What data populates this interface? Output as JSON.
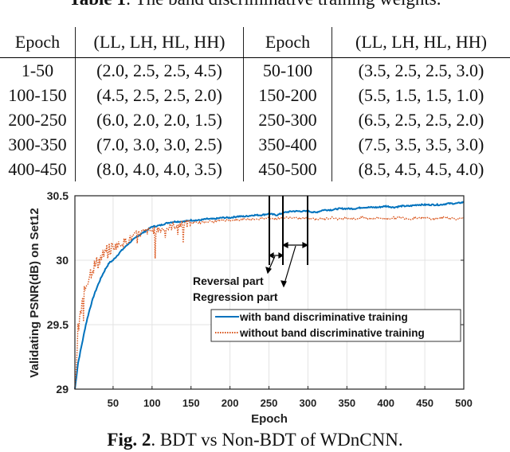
{
  "table": {
    "caption_label": "Table 1",
    "caption_text": ": The band discriminative training weights.",
    "headers": [
      "Epoch",
      "(LL, LH, HL, HH)",
      "Epoch",
      "(LL, LH, HL, HH)"
    ],
    "rows": [
      [
        "1-50",
        "(2.0, 2.5, 2.5, 4.5)",
        "50-100",
        "(3.5, 2.5, 2.5, 3.0)"
      ],
      [
        "100-150",
        "(4.5, 2.5, 2.5, 2.0)",
        "150-200",
        "(5.5, 1.5, 1.5, 1.0)"
      ],
      [
        "200-250",
        "(6.0, 2.0, 2.0, 1.5)",
        "250-300",
        "(6.5, 2.5, 2.5, 2.0)"
      ],
      [
        "300-350",
        "(7.0, 3.0, 3.0, 2.5)",
        "350-400",
        "(7.5, 3.5, 3.5, 3.0)"
      ],
      [
        "400-450",
        "(8.0, 4.0, 4.0, 3.5)",
        "450-500",
        "(8.5, 4.5, 4.5, 4.0)"
      ]
    ]
  },
  "figure": {
    "caption_label": "Fig. 2",
    "caption_text": ". BDT vs Non-BDT of WDnCNN."
  },
  "chart_data": {
    "type": "line",
    "title": "",
    "xlabel": "Epoch",
    "ylabel": "Validating PSNR(dB) on Set12",
    "xlim": [
      1,
      500
    ],
    "ylim": [
      29,
      30.5
    ],
    "xticks": [
      50,
      100,
      150,
      200,
      250,
      300,
      350,
      400,
      450,
      500
    ],
    "yticks": [
      29,
      29.5,
      30,
      30.5
    ],
    "ytick_labels": [
      "29",
      "29.5",
      "30",
      "30.5"
    ],
    "grid": true,
    "legend_position": "lower right",
    "series": [
      {
        "name": "with band discriminative training",
        "color": "#0072BD",
        "style": "solid",
        "x": [
          1,
          5,
          10,
          15,
          20,
          25,
          30,
          35,
          40,
          45,
          50,
          60,
          70,
          80,
          90,
          100,
          110,
          120,
          130,
          140,
          150,
          160,
          170,
          180,
          190,
          200,
          210,
          220,
          230,
          240,
          250,
          260,
          270,
          280,
          290,
          300,
          310,
          320,
          330,
          340,
          350,
          360,
          370,
          380,
          390,
          400,
          410,
          420,
          430,
          440,
          450,
          460,
          470,
          480,
          490,
          500
        ],
        "y": [
          29.0,
          29.2,
          29.35,
          29.5,
          29.62,
          29.72,
          29.8,
          29.87,
          29.93,
          29.98,
          30.0,
          30.07,
          30.13,
          30.18,
          30.22,
          30.26,
          30.27,
          30.29,
          30.3,
          30.3,
          30.31,
          30.31,
          30.32,
          30.32,
          30.33,
          30.33,
          30.34,
          30.34,
          30.35,
          30.35,
          30.36,
          30.35,
          30.37,
          30.38,
          30.38,
          30.38,
          30.37,
          30.39,
          30.39,
          30.4,
          30.4,
          30.4,
          30.41,
          30.41,
          30.41,
          30.42,
          30.41,
          30.42,
          30.42,
          30.43,
          30.43,
          30.43,
          30.43,
          30.44,
          30.44,
          30.45
        ]
      },
      {
        "name": "without band discriminative training",
        "color": "#D95319",
        "style": "dotted",
        "x": [
          1,
          5,
          10,
          15,
          20,
          25,
          30,
          35,
          40,
          45,
          50,
          60,
          70,
          80,
          90,
          100,
          110,
          120,
          130,
          140,
          150,
          160,
          170,
          180,
          190,
          200,
          210,
          220,
          230,
          240,
          250,
          260,
          270,
          280,
          290,
          300,
          310,
          320,
          330,
          340,
          350,
          360,
          370,
          380,
          390,
          400,
          410,
          420,
          430,
          440,
          450,
          460,
          470,
          480,
          490,
          500
        ],
        "y": [
          29.0,
          29.45,
          29.65,
          29.8,
          29.9,
          29.95,
          29.98,
          30.02,
          30.05,
          30.08,
          30.1,
          30.13,
          30.16,
          30.2,
          30.22,
          30.23,
          30.24,
          30.25,
          30.27,
          30.28,
          30.29,
          30.29,
          30.3,
          30.3,
          30.31,
          30.31,
          30.31,
          30.32,
          30.32,
          30.32,
          30.33,
          30.32,
          30.33,
          30.33,
          30.32,
          30.33,
          30.32,
          30.32,
          30.33,
          30.32,
          30.33,
          30.32,
          30.33,
          30.32,
          30.33,
          30.32,
          30.33,
          30.33,
          30.32,
          30.33,
          30.33,
          30.32,
          30.33,
          30.33,
          30.32,
          30.33
        ]
      }
    ],
    "annotations": [
      {
        "text": "Reversal part",
        "span": [
          250,
          268
        ]
      },
      {
        "text": "Regression part",
        "span": [
          268,
          300
        ]
      }
    ]
  }
}
